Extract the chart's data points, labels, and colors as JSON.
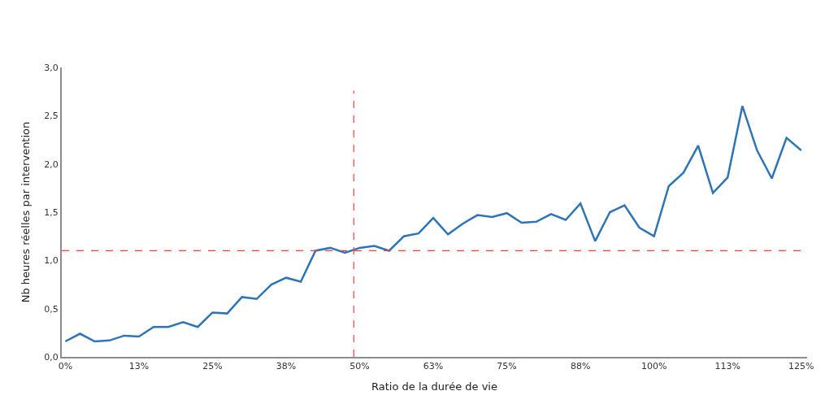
{
  "chart_data": {
    "type": "line",
    "xlabel": "Ratio de la durée de vie",
    "ylabel": "Nb heures réelles par intervention",
    "x": [
      0,
      2.5,
      5,
      7.5,
      10,
      12.5,
      15,
      17.5,
      20,
      22.5,
      25,
      27.5,
      30,
      32.5,
      35,
      37.5,
      40,
      42.5,
      45,
      47.5,
      50,
      52.5,
      55,
      57.5,
      60,
      62.5,
      65,
      67.5,
      70,
      72.5,
      75,
      77.5,
      80,
      82.5,
      85,
      87.5,
      90,
      92.5,
      95,
      97.5,
      100,
      102.5,
      105,
      107.5,
      110,
      112.5,
      115,
      117.5,
      120,
      122.5,
      125
    ],
    "series": [
      {
        "color": "#2e75b6",
        "values": [
          0.16,
          0.24,
          0.16,
          0.17,
          0.22,
          0.21,
          0.31,
          0.31,
          0.36,
          0.31,
          0.46,
          0.45,
          0.62,
          0.6,
          0.75,
          0.82,
          0.78,
          1.1,
          1.13,
          1.08,
          1.13,
          1.15,
          1.1,
          1.25,
          1.28,
          1.44,
          1.27,
          1.38,
          1.47,
          1.45,
          1.49,
          1.39,
          1.4,
          1.48,
          1.42,
          1.59,
          1.2,
          1.5,
          1.57,
          1.34,
          1.25,
          1.77,
          1.91,
          2.19,
          1.7,
          1.86,
          2.6,
          2.14,
          1.85,
          2.27,
          2.14
        ]
      }
    ],
    "xlim": [
      -0.6,
      126
    ],
    "xticks": [
      {
        "value": 0,
        "label": "0%"
      },
      {
        "value": 12.5,
        "label": "13%"
      },
      {
        "value": 25,
        "label": "25%"
      },
      {
        "value": 37.5,
        "label": "38%"
      },
      {
        "value": 50,
        "label": "50%"
      },
      {
        "value": 62.5,
        "label": "63%"
      },
      {
        "value": 75,
        "label": "75%"
      },
      {
        "value": 87.5,
        "label": "88%"
      },
      {
        "value": 100,
        "label": "100%"
      },
      {
        "value": 112.5,
        "label": "113%"
      },
      {
        "value": 125,
        "label": "125%"
      }
    ],
    "ylim": [
      0,
      3
    ],
    "yticks": [
      {
        "value": 0,
        "label": "0,0"
      },
      {
        "value": 0.5,
        "label": "0,5"
      },
      {
        "value": 1,
        "label": "1,0"
      },
      {
        "value": 1.5,
        "label": "1,5"
      },
      {
        "value": 2,
        "label": "2,0"
      },
      {
        "value": 2.5,
        "label": "2,5"
      },
      {
        "value": 3,
        "label": "3,0"
      }
    ],
    "ref_lines": [
      {
        "axis": "x",
        "value": 49,
        "color": "#ff4040",
        "line_style": "dashed"
      },
      {
        "axis": "y",
        "value": 1.1,
        "color": "#ff4040",
        "line_style": "dashed"
      }
    ],
    "marker": "none",
    "line_style": "solid"
  }
}
